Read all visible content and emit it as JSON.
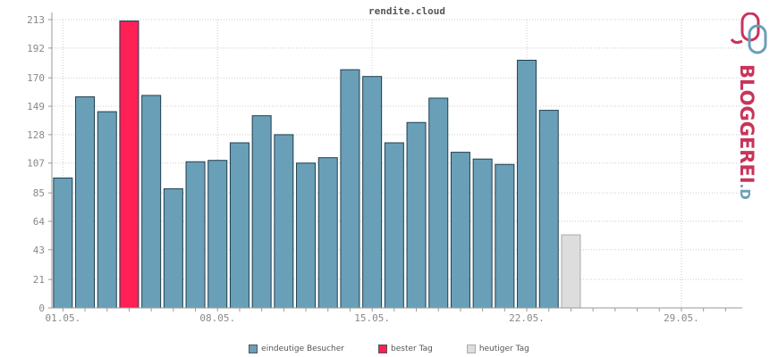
{
  "chart_data": {
    "type": "bar",
    "title": "rendite.cloud",
    "xlabel": "",
    "ylabel": "",
    "ylim": [
      0,
      213
    ],
    "yticks": [
      0,
      21,
      43,
      64,
      85,
      107,
      128,
      149,
      170,
      192,
      213
    ],
    "x_tick_labels": [
      "01.05.",
      "08.05.",
      "15.05.",
      "22.05.",
      "29.05."
    ],
    "x_tick_days": [
      1,
      8,
      15,
      22,
      29
    ],
    "days_in_month": 31,
    "grid": true,
    "legend_position": "bottom-center",
    "series": [
      {
        "name": "eindeutige Besucher",
        "color": "#6a9fb8",
        "days": [
          1,
          2,
          3,
          5,
          6,
          7,
          8,
          9,
          10,
          11,
          12,
          13,
          14,
          15,
          16,
          17,
          18,
          19,
          20,
          21,
          22,
          23
        ],
        "values": [
          96,
          156,
          145,
          157,
          88,
          108,
          109,
          122,
          142,
          128,
          107,
          111,
          176,
          171,
          122,
          137,
          155,
          115,
          110,
          106,
          183,
          146
        ]
      },
      {
        "name": "bester Tag",
        "color": "#ff2056",
        "days": [
          4
        ],
        "values": [
          212
        ]
      },
      {
        "name": "heutiger Tag",
        "color": "#dddddd",
        "days": [
          24
        ],
        "values": [
          54
        ]
      }
    ]
  },
  "logo": {
    "text_main": "BLOGGEREI",
    "text_suffix": ".DE",
    "colors": {
      "main": "#c8345a",
      "suffix": "#6a9fb8"
    }
  }
}
